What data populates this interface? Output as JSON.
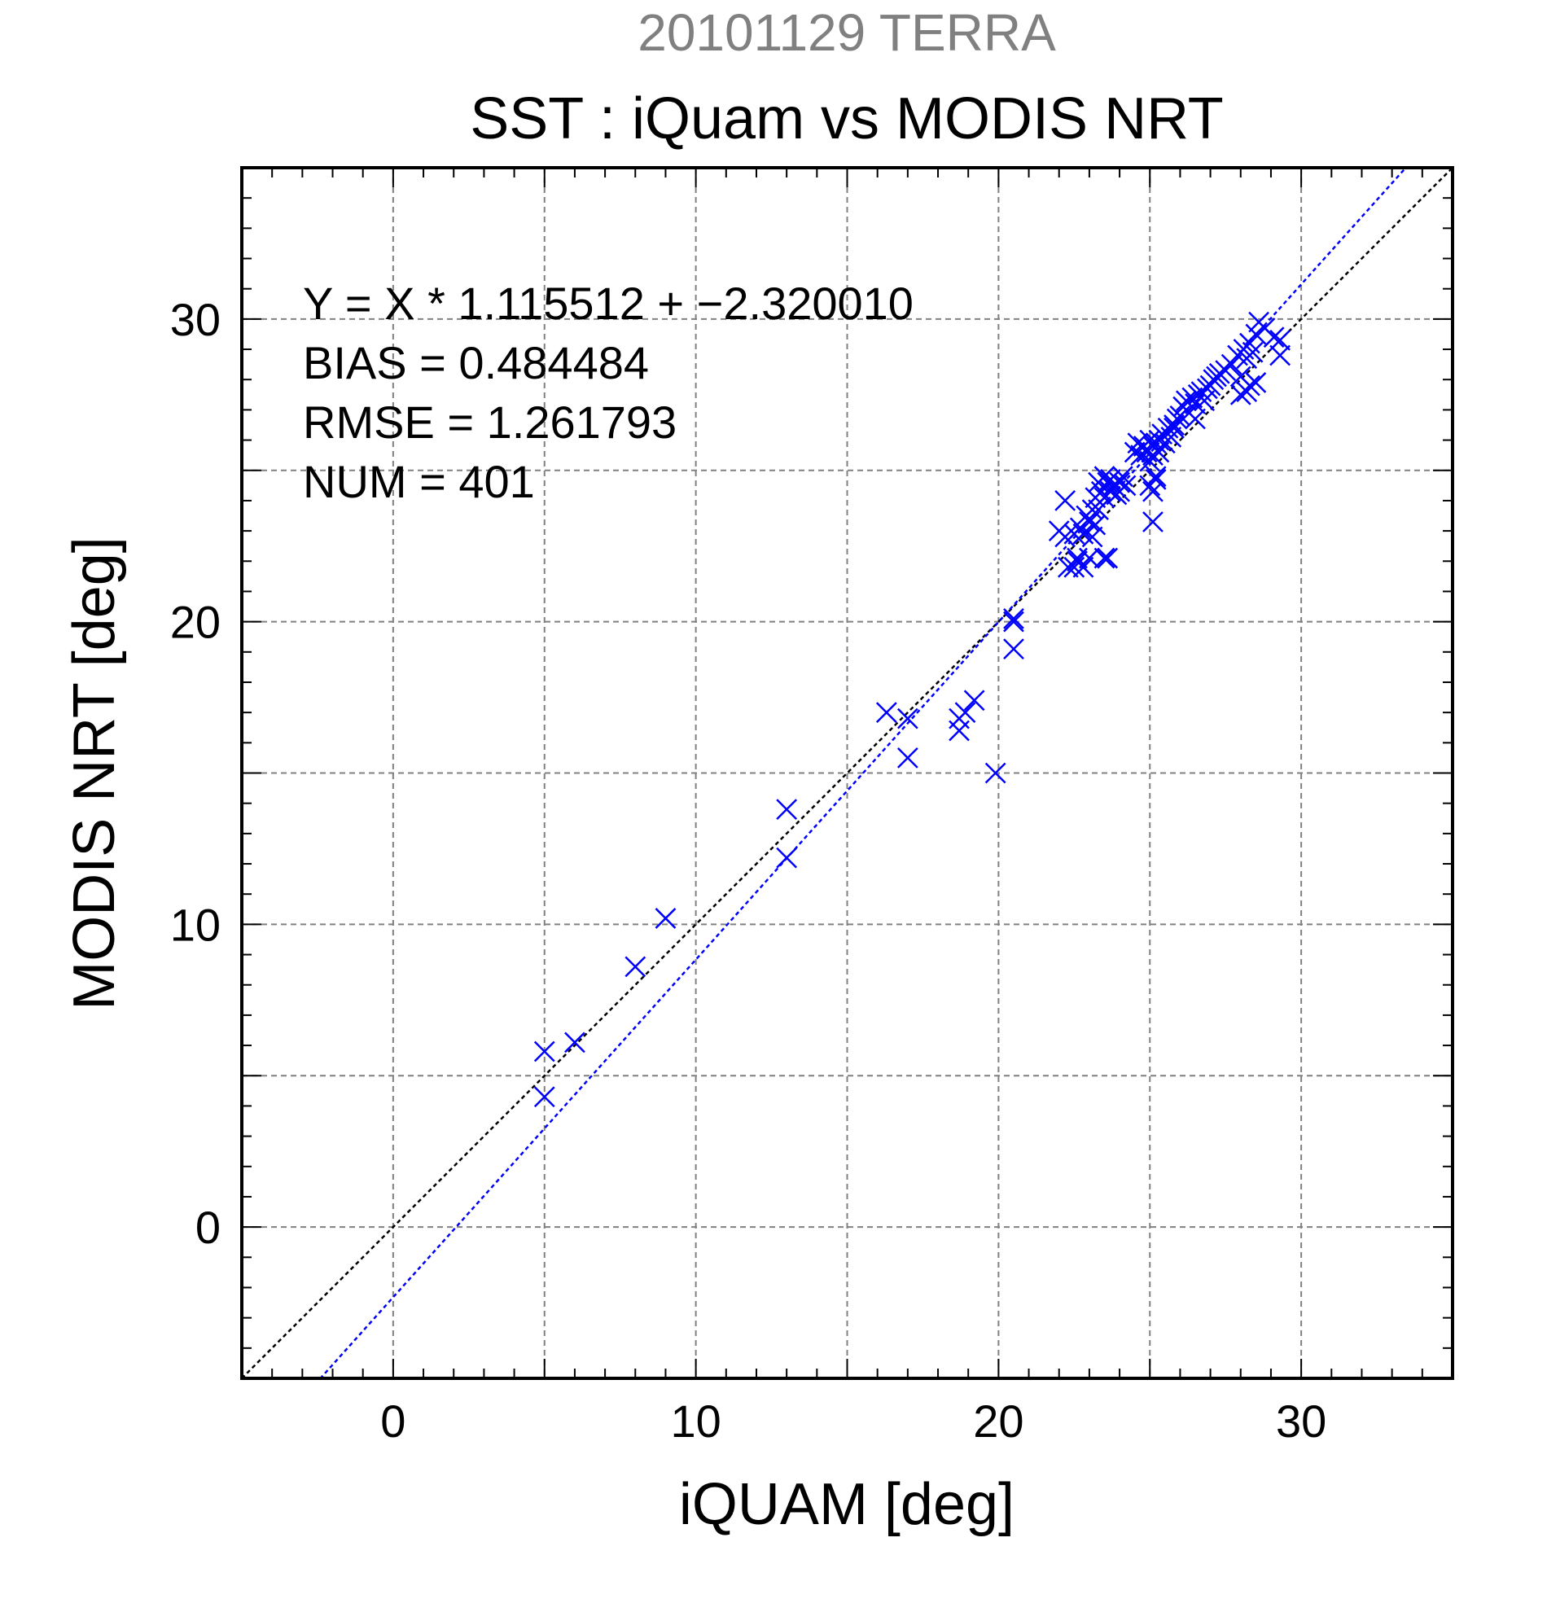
{
  "header": {
    "title": "20101129 TERRA",
    "subtitle": "SST : iQuam vs MODIS NRT"
  },
  "stats": {
    "line1": "Y = X * 1.115512 + −2.320010",
    "line2": "BIAS = 0.484484",
    "line3": "RMSE = 1.261793",
    "line4": "NUM = 401"
  },
  "colors": {
    "points": "#0000ff",
    "fit_line": "#0000ff",
    "identity_line": "#000000",
    "title": "#808080",
    "grid": "#808080"
  },
  "chart_data": {
    "type": "scatter",
    "title": "20101129 TERRA",
    "subtitle": "SST : iQuam vs MODIS NRT",
    "xlabel": "iQUAM [deg]",
    "ylabel": "MODIS NRT [deg]",
    "xlim": [
      -5,
      35
    ],
    "ylim": [
      -5,
      35
    ],
    "xticks": [
      0,
      10,
      20,
      30
    ],
    "yticks": [
      0,
      10,
      20,
      30
    ],
    "grid": true,
    "marker": "x",
    "fit": {
      "slope": 1.115512,
      "intercept": -2.32001
    },
    "identity_line": true,
    "series": [
      {
        "x": [
          5.0,
          5.0,
          6.0,
          8.0,
          9.0,
          13.0,
          13.0,
          16.3,
          17.0,
          17.0,
          18.7,
          18.7,
          18.9,
          19.2,
          19.9,
          20.5,
          20.5,
          20.5,
          22.0,
          22.2,
          22.2,
          22.3,
          22.5,
          22.6,
          22.7,
          22.8,
          22.9,
          23.0,
          23.0,
          23.1,
          23.1,
          23.2,
          23.2,
          23.3,
          23.3,
          23.4,
          23.5,
          23.5,
          23.6,
          23.7,
          23.7,
          23.8,
          23.9,
          24.0,
          24.0,
          24.1,
          24.2,
          22.5,
          22.6,
          22.8,
          23.5,
          23.6,
          24.5,
          24.6,
          24.7,
          24.8,
          24.9,
          25.0,
          25.0,
          25.1,
          25.1,
          25.2,
          25.3,
          25.3,
          25.4,
          25.5,
          25.6,
          25.7,
          25.8,
          25.9,
          25.0,
          25.1,
          25.2,
          25.2,
          25.1,
          25.8,
          26.0,
          26.1,
          26.2,
          26.3,
          26.4,
          26.5,
          26.5,
          26.6,
          26.7,
          26.8,
          26.9,
          27.0,
          27.1,
          27.2,
          27.3,
          27.5,
          27.7,
          27.9,
          28.0,
          28.0,
          28.1,
          28.2,
          28.3,
          28.3,
          28.4,
          28.5,
          28.6,
          28.8,
          29.1,
          29.3,
          29.3,
          28.2,
          28.5
        ],
        "y": [
          5.8,
          4.3,
          6.1,
          8.6,
          10.2,
          13.8,
          12.2,
          17.0,
          16.8,
          15.5,
          16.8,
          16.4,
          17.0,
          17.4,
          15.0,
          20.1,
          20.0,
          19.1,
          23.0,
          24.0,
          22.8,
          21.8,
          22.9,
          22.1,
          23.1,
          22.9,
          23.5,
          23.3,
          22.1,
          23.7,
          22.8,
          24.1,
          23.2,
          24.6,
          23.7,
          24.3,
          24.1,
          24.8,
          24.6,
          24.3,
          24.7,
          24.5,
          24.2,
          24.6,
          24.3,
          24.8,
          24.5,
          21.8,
          22.0,
          21.8,
          22.1,
          22.1,
          25.6,
          25.9,
          25.5,
          25.8,
          25.6,
          25.3,
          26.0,
          25.8,
          25.5,
          25.9,
          26.0,
          25.6,
          26.2,
          25.9,
          26.4,
          26.1,
          26.5,
          26.7,
          24.5,
          24.3,
          24.8,
          24.7,
          23.3,
          26.4,
          26.8,
          27.1,
          27.3,
          26.9,
          27.4,
          27.2,
          26.7,
          27.5,
          27.6,
          27.3,
          27.7,
          27.8,
          28.0,
          28.1,
          28.2,
          28.3,
          28.5,
          28.8,
          27.5,
          28.1,
          29.0,
          28.7,
          27.8,
          29.2,
          28.9,
          29.5,
          29.9,
          29.7,
          29.4,
          29.3,
          28.8,
          27.6,
          27.9
        ]
      }
    ]
  }
}
